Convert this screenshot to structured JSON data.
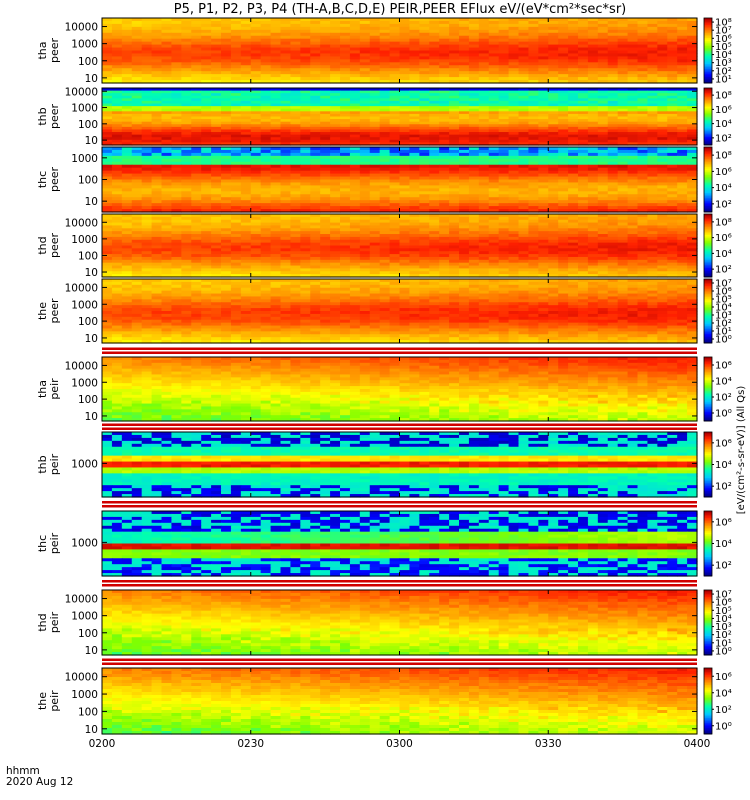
{
  "chart_data": {
    "type": "heatmap",
    "title": "P5, P1, P2, P3, P4 (TH-A,B,C,D,E) PEIR,PEER EFlux eV/(eV*cm²*sec*sr)",
    "colorbar_label": "[eV/(cm²-s-sr-eV)] (All Qs)",
    "time_axis": {
      "label": "hhmm",
      "date": "2020 Aug 12",
      "ticks": [
        "0200",
        "0230",
        "0300",
        "0330",
        "0400"
      ],
      "range": [
        "02:00",
        "04:00"
      ]
    },
    "panels": [
      {
        "name": "tha peer",
        "probe": "tha",
        "species": "peer",
        "yticks": [
          "10",
          "100",
          "1000",
          "10000"
        ],
        "ylog": [
          0.7,
          4.5
        ],
        "cbar": [
          "10¹",
          "10²",
          "10³",
          "10⁴",
          "10⁵",
          "10⁶",
          "10⁷",
          "10⁸"
        ],
        "cblog": [
          1,
          8
        ]
      },
      {
        "name": "thb peer",
        "probe": "thb",
        "species": "peer",
        "yticks": [
          "10",
          "100",
          "1000",
          "10000"
        ],
        "ylog": [
          0.7,
          4.2
        ],
        "cbar": [
          "10²",
          "10⁴",
          "10⁶",
          "10⁸"
        ],
        "cblog": [
          1,
          8
        ]
      },
      {
        "name": "thc peer",
        "probe": "thc",
        "species": "peer",
        "yticks": [
          "10",
          "100",
          "1000"
        ],
        "ylog": [
          0.5,
          3.5
        ],
        "cbar": [
          "10²",
          "10⁴",
          "10⁶",
          "10⁸"
        ],
        "cblog": [
          1,
          8
        ]
      },
      {
        "name": "thd peer",
        "probe": "thd",
        "species": "peer",
        "yticks": [
          "10",
          "100",
          "1000",
          "10000"
        ],
        "ylog": [
          0.7,
          4.5
        ],
        "cbar": [
          "10²",
          "10⁴",
          "10⁶",
          "10⁸"
        ],
        "cblog": [
          1,
          8
        ]
      },
      {
        "name": "the peer",
        "probe": "the",
        "species": "peer",
        "yticks": [
          "10",
          "100",
          "1000",
          "10000"
        ],
        "ylog": [
          0.7,
          4.5
        ],
        "cbar": [
          "10⁰",
          "10¹",
          "10²",
          "10³",
          "10⁴",
          "10⁵",
          "10⁶",
          "10⁷"
        ],
        "cblog": [
          0,
          7.5
        ]
      },
      {
        "name": "tha peir",
        "probe": "tha",
        "species": "peir",
        "yticks": [
          "10",
          "100",
          "1000",
          "10000"
        ],
        "ylog": [
          0.7,
          4.5
        ],
        "cbar": [
          "10⁰",
          "10²",
          "10⁴",
          "10⁶"
        ],
        "cblog": [
          0,
          7
        ]
      },
      {
        "name": "thb peir",
        "probe": "thb",
        "species": "peir",
        "yticks": [
          "1000"
        ],
        "ylog": [
          1.5,
          4.4
        ],
        "cbar": [
          "10²",
          "10⁴",
          "10⁶"
        ],
        "cblog": [
          1,
          7
        ]
      },
      {
        "name": "thc peir",
        "probe": "thc",
        "species": "peir",
        "yticks": [
          "1000"
        ],
        "ylog": [
          1.5,
          4.4
        ],
        "cbar": [
          "10²",
          "10⁴",
          "10⁶"
        ],
        "cblog": [
          1,
          7
        ]
      },
      {
        "name": "thd peir",
        "probe": "thd",
        "species": "peir",
        "yticks": [
          "10",
          "100",
          "1000",
          "10000"
        ],
        "ylog": [
          0.7,
          4.5
        ],
        "cbar": [
          "10⁰",
          "10¹",
          "10²",
          "10³",
          "10⁴",
          "10⁵",
          "10⁶",
          "10⁷"
        ],
        "cblog": [
          0,
          7.5
        ]
      },
      {
        "name": "the peir",
        "probe": "the",
        "species": "peir",
        "yticks": [
          "10",
          "100",
          "1000",
          "10000"
        ],
        "ylog": [
          0.7,
          4.5
        ],
        "cbar": [
          "10⁰",
          "10²",
          "10⁴",
          "10⁶"
        ],
        "cblog": [
          0,
          7
        ]
      }
    ]
  }
}
